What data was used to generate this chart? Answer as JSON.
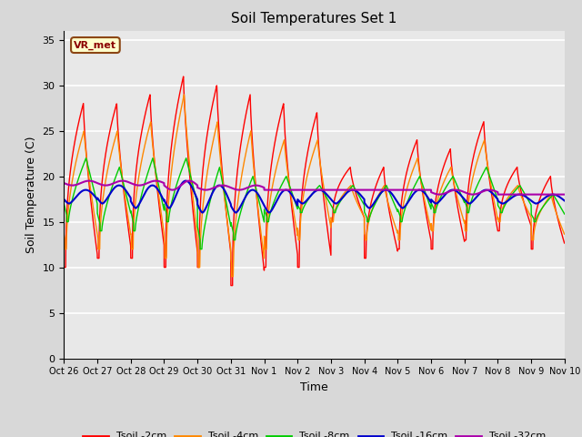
{
  "title": "Soil Temperatures Set 1",
  "xlabel": "Time",
  "ylabel": "Soil Temperature (C)",
  "ylim": [
    0,
    36
  ],
  "yticks": [
    0,
    5,
    10,
    15,
    20,
    25,
    30,
    35
  ],
  "colors": {
    "Tsoil -2cm": "#ff0000",
    "Tsoil -4cm": "#ff8800",
    "Tsoil -8cm": "#00cc00",
    "Tsoil -16cm": "#0000cc",
    "Tsoil -32cm": "#aa00aa"
  },
  "legend_label": "VR_met",
  "background_color": "#d8d8d8",
  "plot_bg_color": "#e8e8e8",
  "x_start": 0,
  "x_end": 15,
  "xtick_labels": [
    "Oct 26",
    "Oct 27",
    "Oct 28",
    "Oct 29",
    "Oct 30",
    "Oct 31",
    "Nov 1",
    "Nov 2",
    "Nov 3",
    "Nov 4",
    "Nov 5",
    "Nov 6",
    "Nov 7",
    "Nov 8",
    "Nov 9",
    "Nov 10"
  ],
  "xtick_positions": [
    0,
    1,
    2,
    3,
    4,
    5,
    6,
    7,
    8,
    9,
    10,
    11,
    12,
    13,
    14,
    15
  ],
  "grid_color": "#ffffff",
  "figsize": [
    6.4,
    4.8
  ],
  "dpi": 100
}
